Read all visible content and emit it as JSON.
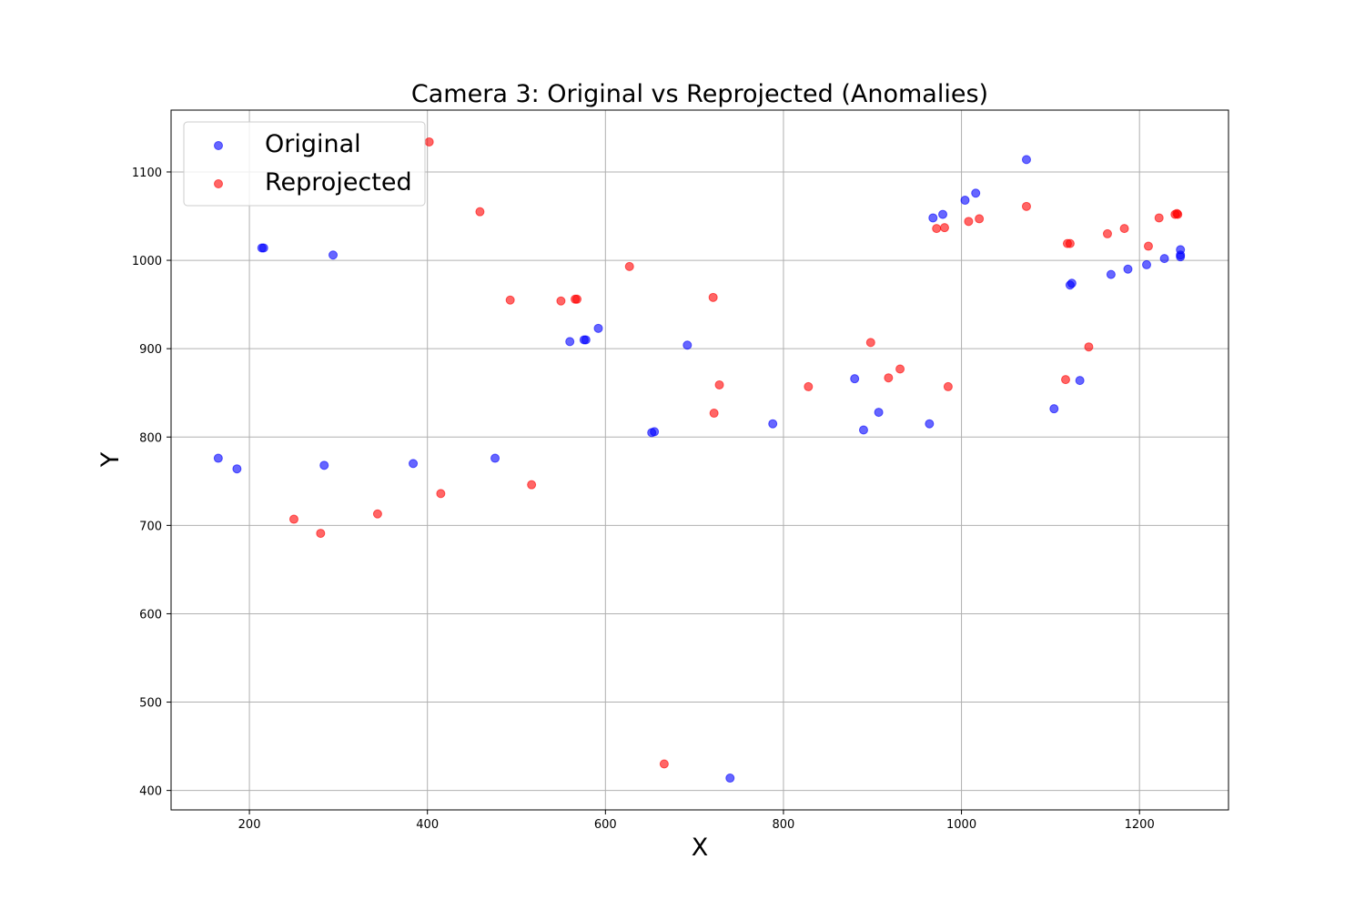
{
  "chart_data": {
    "type": "scatter",
    "title": "Camera 3: Original vs Reprojected (Anomalies)",
    "xlabel": "X",
    "ylabel": "Y",
    "xlim": [
      112,
      1300
    ],
    "ylim": [
      378,
      1170
    ],
    "xticks": [
      200,
      400,
      600,
      800,
      1000,
      1200
    ],
    "yticks": [
      400,
      500,
      600,
      700,
      800,
      900,
      1000,
      1100
    ],
    "grid": true,
    "legend_position": "top-left",
    "series": [
      {
        "name": "Original",
        "color": "#0000ff",
        "points": [
          [
            165,
            776
          ],
          [
            186,
            764
          ],
          [
            214,
            1014
          ],
          [
            216,
            1014
          ],
          [
            294,
            1006
          ],
          [
            284,
            768
          ],
          [
            384,
            770
          ],
          [
            476,
            776
          ],
          [
            560,
            908
          ],
          [
            576,
            910
          ],
          [
            578,
            910
          ],
          [
            592,
            923
          ],
          [
            652,
            805
          ],
          [
            655,
            806
          ],
          [
            692,
            904
          ],
          [
            740,
            414
          ],
          [
            788,
            815
          ],
          [
            880,
            866
          ],
          [
            890,
            808
          ],
          [
            907,
            828
          ],
          [
            964,
            815
          ],
          [
            968,
            1048
          ],
          [
            979,
            1052
          ],
          [
            1004,
            1068
          ],
          [
            1016,
            1076
          ],
          [
            1073,
            1114
          ],
          [
            1104,
            832
          ],
          [
            1122,
            972
          ],
          [
            1124,
            974
          ],
          [
            1133,
            864
          ],
          [
            1168,
            984
          ],
          [
            1187,
            990
          ],
          [
            1208,
            995
          ],
          [
            1228,
            1002
          ],
          [
            1246,
            1004
          ],
          [
            1246,
            1006
          ],
          [
            1246,
            1012
          ]
        ]
      },
      {
        "name": "Reprojected",
        "color": "#ff0000",
        "points": [
          [
            250,
            707
          ],
          [
            280,
            691
          ],
          [
            344,
            713
          ],
          [
            402,
            1134
          ],
          [
            415,
            736
          ],
          [
            459,
            1055
          ],
          [
            493,
            955
          ],
          [
            517,
            746
          ],
          [
            550,
            954
          ],
          [
            566,
            956
          ],
          [
            568,
            956
          ],
          [
            627,
            993
          ],
          [
            666,
            430
          ],
          [
            721,
            958
          ],
          [
            722,
            827
          ],
          [
            728,
            859
          ],
          [
            828,
            857
          ],
          [
            898,
            907
          ],
          [
            918,
            867
          ],
          [
            931,
            877
          ],
          [
            972,
            1036
          ],
          [
            981,
            1037
          ],
          [
            985,
            857
          ],
          [
            1008,
            1044
          ],
          [
            1020,
            1047
          ],
          [
            1073,
            1061
          ],
          [
            1117,
            865
          ],
          [
            1119,
            1019
          ],
          [
            1122,
            1019
          ],
          [
            1143,
            902
          ],
          [
            1164,
            1030
          ],
          [
            1183,
            1036
          ],
          [
            1210,
            1016
          ],
          [
            1222,
            1048
          ],
          [
            1240,
            1052
          ],
          [
            1242,
            1053
          ],
          [
            1243,
            1052
          ]
        ]
      }
    ]
  }
}
